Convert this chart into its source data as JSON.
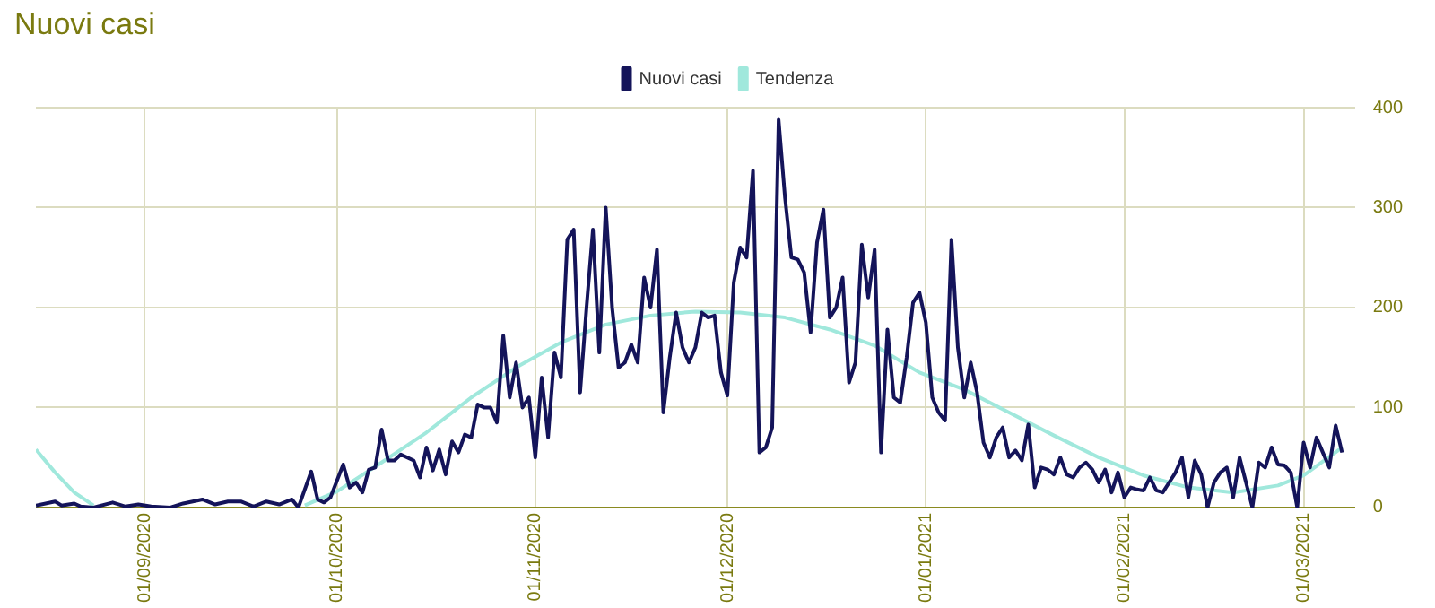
{
  "chart_data": {
    "type": "line",
    "title": "Nuovi casi",
    "legend": "top",
    "grid": true,
    "marker": "none",
    "line_style": "solid",
    "tick_labels": "xy",
    "xlim": [
      "2020-08-15",
      "2021-03-09"
    ],
    "xticks": [
      {
        "value": "2020-09-01",
        "label": "01/09/2020"
      },
      {
        "value": "2020-10-01",
        "label": "01/10/2020"
      },
      {
        "value": "2020-11-01",
        "label": "01/11/2020"
      },
      {
        "value": "2020-12-01",
        "label": "01/12/2020"
      },
      {
        "value": "2021-01-01",
        "label": "01/01/2021"
      },
      {
        "value": "2021-02-01",
        "label": "01/02/2021"
      },
      {
        "value": "2021-03-01",
        "label": "01/03/2021"
      }
    ],
    "ylim": [
      0,
      400
    ],
    "yticks": [
      0,
      100,
      200,
      300,
      400
    ],
    "series": [
      {
        "name": "Nuovi casi",
        "color": "#14145a",
        "x": [
          "2020-08-15",
          "2020-08-18",
          "2020-08-19",
          "2020-08-21",
          "2020-08-22",
          "2020-08-24",
          "2020-08-27",
          "2020-08-29",
          "2020-08-31",
          "2020-09-02",
          "2020-09-05",
          "2020-09-07",
          "2020-09-10",
          "2020-09-12",
          "2020-09-14",
          "2020-09-16",
          "2020-09-18",
          "2020-09-20",
          "2020-09-22",
          "2020-09-24",
          "2020-09-25",
          "2020-09-27",
          "2020-09-28",
          "2020-09-29",
          "2020-09-30",
          "2020-10-02",
          "2020-10-03",
          "2020-10-04",
          "2020-10-05",
          "2020-10-06",
          "2020-10-07",
          "2020-10-08",
          "2020-10-09",
          "2020-10-10",
          "2020-10-11",
          "2020-10-13",
          "2020-10-14",
          "2020-10-15",
          "2020-10-16",
          "2020-10-17",
          "2020-10-18",
          "2020-10-19",
          "2020-10-20",
          "2020-10-21",
          "2020-10-22",
          "2020-10-23",
          "2020-10-24",
          "2020-10-25",
          "2020-10-26",
          "2020-10-27",
          "2020-10-28",
          "2020-10-29",
          "2020-10-30",
          "2020-10-31",
          "2020-11-01",
          "2020-11-02",
          "2020-11-03",
          "2020-11-04",
          "2020-11-05",
          "2020-11-06",
          "2020-11-07",
          "2020-11-08",
          "2020-11-09",
          "2020-11-10",
          "2020-11-11",
          "2020-11-12",
          "2020-11-13",
          "2020-11-14",
          "2020-11-15",
          "2020-11-16",
          "2020-11-17",
          "2020-11-18",
          "2020-11-19",
          "2020-11-20",
          "2020-11-21",
          "2020-11-22",
          "2020-11-23",
          "2020-11-24",
          "2020-11-25",
          "2020-11-26",
          "2020-11-27",
          "2020-11-28",
          "2020-11-29",
          "2020-11-30",
          "2020-12-01",
          "2020-12-02",
          "2020-12-03",
          "2020-12-04",
          "2020-12-05",
          "2020-12-06",
          "2020-12-07",
          "2020-12-08",
          "2020-12-09",
          "2020-12-10",
          "2020-12-11",
          "2020-12-12",
          "2020-12-13",
          "2020-12-14",
          "2020-12-15",
          "2020-12-16",
          "2020-12-17",
          "2020-12-18",
          "2020-12-19",
          "2020-12-20",
          "2020-12-21",
          "2020-12-22",
          "2020-12-23",
          "2020-12-24",
          "2020-12-25",
          "2020-12-26",
          "2020-12-27",
          "2020-12-28",
          "2020-12-29",
          "2020-12-30",
          "2020-12-31",
          "2021-01-01",
          "2021-01-02",
          "2021-01-03",
          "2021-01-04",
          "2021-01-05",
          "2021-01-06",
          "2021-01-07",
          "2021-01-08",
          "2021-01-09",
          "2021-01-10",
          "2021-01-11",
          "2021-01-12",
          "2021-01-13",
          "2021-01-14",
          "2021-01-15",
          "2021-01-16",
          "2021-01-17",
          "2021-01-18",
          "2021-01-19",
          "2021-01-20",
          "2021-01-21",
          "2021-01-22",
          "2021-01-23",
          "2021-01-24",
          "2021-01-25",
          "2021-01-26",
          "2021-01-27",
          "2021-01-28",
          "2021-01-29",
          "2021-01-30",
          "2021-01-31",
          "2021-02-01",
          "2021-02-02",
          "2021-02-03",
          "2021-02-04",
          "2021-02-05",
          "2021-02-06",
          "2021-02-07",
          "2021-02-08",
          "2021-02-09",
          "2021-02-10",
          "2021-02-11",
          "2021-02-12",
          "2021-02-13",
          "2021-02-14",
          "2021-02-15",
          "2021-02-16",
          "2021-02-17",
          "2021-02-18",
          "2021-02-19",
          "2021-02-20",
          "2021-02-21",
          "2021-02-22",
          "2021-02-23",
          "2021-02-24",
          "2021-02-25",
          "2021-02-26",
          "2021-02-27",
          "2021-02-28",
          "2021-03-01",
          "2021-03-02",
          "2021-03-03",
          "2021-03-04",
          "2021-03-05",
          "2021-03-06",
          "2021-03-07"
        ],
        "values": [
          2,
          6,
          2,
          4,
          1,
          0,
          5,
          1,
          3,
          1,
          0,
          4,
          8,
          3,
          6,
          6,
          1,
          6,
          3,
          8,
          0,
          36,
          8,
          5,
          10,
          43,
          20,
          25,
          15,
          38,
          40,
          78,
          47,
          47,
          53,
          47,
          30,
          60,
          37,
          58,
          33,
          66,
          55,
          73,
          70,
          103,
          100,
          100,
          85,
          172,
          110,
          145,
          100,
          110,
          50,
          130,
          70,
          155,
          130,
          268,
          278,
          115,
          200,
          278,
          155,
          300,
          200,
          140,
          145,
          163,
          145,
          230,
          200,
          258,
          95,
          150,
          195,
          160,
          145,
          160,
          195,
          190,
          192,
          135,
          112,
          225,
          260,
          250,
          337,
          55,
          60,
          80,
          388,
          310,
          250,
          248,
          235,
          175,
          265,
          298,
          190,
          200,
          230,
          125,
          145,
          263,
          210,
          258,
          55,
          178,
          110,
          105,
          150,
          205,
          215,
          185,
          110,
          95,
          87,
          268,
          160,
          110,
          145,
          115,
          65,
          50,
          70,
          80,
          50,
          57,
          47,
          83,
          20,
          40,
          38,
          33,
          50,
          33,
          30,
          40,
          45,
          38,
          25,
          38,
          15,
          35,
          10,
          20,
          18,
          17,
          30,
          17,
          15,
          25,
          35,
          50,
          10,
          47,
          33,
          0,
          25,
          35,
          40,
          10,
          50,
          25,
          0,
          45,
          40,
          60,
          43,
          42,
          35,
          0,
          65,
          40,
          70,
          55,
          40,
          82,
          55
        ]
      },
      {
        "name": "Tendenza",
        "color": "#a0e8dc",
        "x": [
          "2020-08-15",
          "2020-08-18",
          "2020-08-21",
          "2020-08-24",
          "2020-09-10",
          "2020-09-26",
          "2020-10-01",
          "2020-10-08",
          "2020-10-15",
          "2020-10-22",
          "2020-10-29",
          "2020-11-05",
          "2020-11-12",
          "2020-11-19",
          "2020-11-26",
          "2020-12-03",
          "2020-12-10",
          "2020-12-17",
          "2020-12-24",
          "2020-12-31",
          "2021-01-07",
          "2021-01-14",
          "2021-01-21",
          "2021-01-28",
          "2021-02-04",
          "2021-02-11",
          "2021-02-18",
          "2021-02-25",
          "2021-03-01",
          "2021-03-07"
        ],
        "values": [
          58,
          35,
          15,
          2,
          null,
          2,
          16,
          45,
          75,
          110,
          140,
          165,
          183,
          192,
          196,
          195,
          190,
          178,
          162,
          135,
          118,
          95,
          72,
          50,
          32,
          20,
          15,
          22,
          32,
          60
        ]
      }
    ]
  }
}
